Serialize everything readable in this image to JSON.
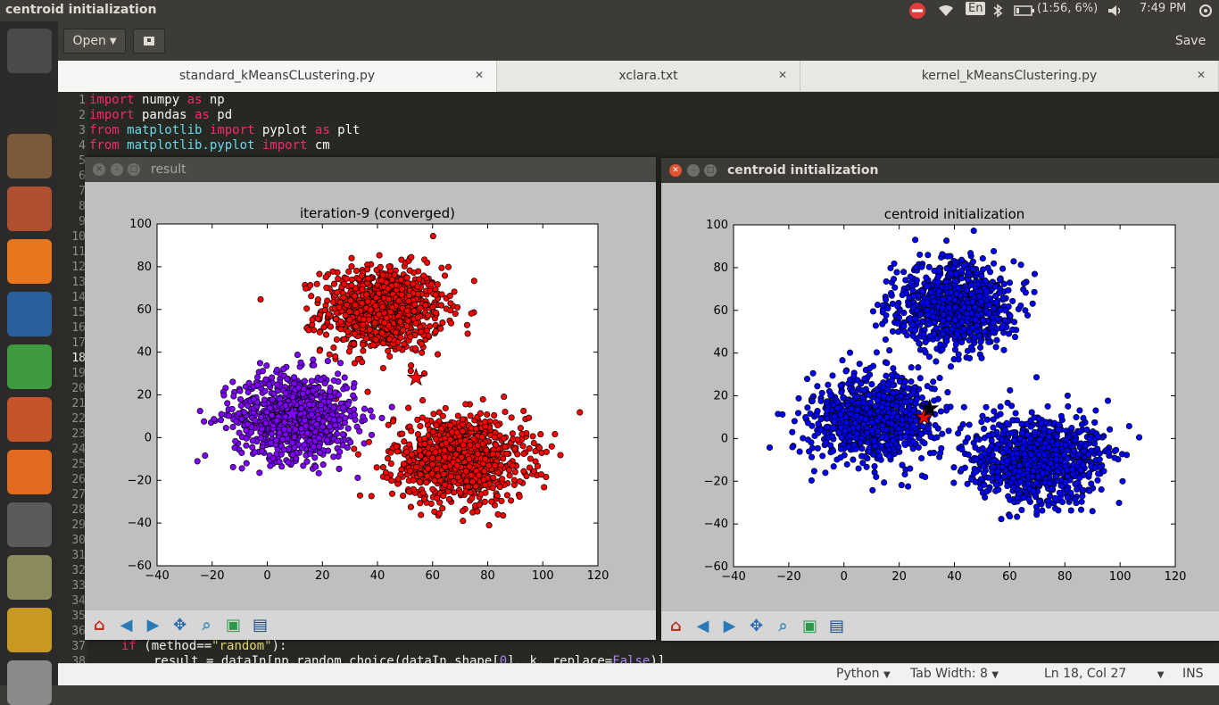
{
  "top_panel": {
    "window_title": "centroid initialization",
    "keyboard_layout": "En",
    "battery": "(1:56, 6%)",
    "clock": "7:49 PM",
    "icons": [
      "do-not-disturb-icon",
      "wifi-icon",
      "keyboard-icon",
      "bluetooth-icon",
      "battery-icon",
      "volume-icon",
      "power-gear-icon"
    ]
  },
  "launcher": {
    "items": [
      {
        "name": "ubuntu-dash-icon",
        "color": "#4a4a4a"
      },
      {
        "name": "terminal-icon",
        "color": "#2b2b2b"
      },
      {
        "name": "gedit-icon",
        "color": "#7a5a3a"
      },
      {
        "name": "files-icon",
        "color": "#b05030"
      },
      {
        "name": "firefox-icon",
        "color": "#e8761e"
      },
      {
        "name": "writer-icon",
        "color": "#2a5f9e"
      },
      {
        "name": "calc-icon",
        "color": "#3e9a3e"
      },
      {
        "name": "impress-icon",
        "color": "#c6542a"
      },
      {
        "name": "software-center-icon",
        "color": "#e26a1f"
      },
      {
        "name": "system-settings-icon",
        "color": "#5b5b5b"
      },
      {
        "name": "software-updater-icon",
        "color": "#8a8a5a"
      },
      {
        "name": "system-monitor-icon",
        "color": "#c89a22"
      },
      {
        "name": "help-icon",
        "color": "#8a8a8a"
      }
    ]
  },
  "gedit": {
    "open_label": "Open",
    "save_label": "Save",
    "tabs": [
      {
        "label": "standard_kMeansCLustering.py"
      },
      {
        "label": "xclara.txt"
      },
      {
        "label": "kernel_kMeansClustering.py"
      }
    ],
    "line_numbers": [
      "1",
      "2",
      "3",
      "4",
      "5",
      "6",
      "7",
      "8",
      "9",
      "10",
      "11",
      "12",
      "13",
      "14",
      "15",
      "16",
      "17",
      "18",
      "19",
      "20",
      "21",
      "22",
      "23",
      "24",
      "25",
      "26",
      "27",
      "28",
      "29",
      "30",
      "31",
      "32",
      "33",
      "34",
      "35",
      "36",
      "37",
      "38"
    ],
    "code_lines": [
      {
        "kw1": "import",
        "rest": " numpy ",
        "kw2": "as",
        "rest2": " np"
      },
      {
        "kw1": "import",
        "rest": " pandas ",
        "kw2": "as",
        "rest2": " pd"
      },
      {
        "kw1": "from",
        "mod": " matplotlib ",
        "kw2": "import",
        "rest2": " pyplot ",
        "kw3": "as",
        "rest3": " plt"
      },
      {
        "kw1": "from",
        "mod": " matplotlib.pyplot ",
        "kw2": "import",
        "rest2": " cm"
      }
    ],
    "line37": {
      "kw": "if",
      "a": " (method==",
      "s": "\"random\"",
      "b": "):"
    },
    "line38": {
      "a": "result = dataIn[np.random.choice(dataIn.shape[",
      "n": "0",
      "b": "], k, replace=",
      "f": "False",
      "c": ")]"
    },
    "status": {
      "language": "Python",
      "tab_width": "Tab Width: 8",
      "position": "Ln 18, Col 27",
      "mode": "INS"
    }
  },
  "windows": {
    "result": {
      "title": "result"
    },
    "centroid": {
      "title": "centroid initialization"
    },
    "toolbar_icons": [
      "home-icon",
      "back-icon",
      "forward-icon",
      "pan-icon",
      "zoom-icon",
      "subplots-icon",
      "save-icon"
    ]
  },
  "chart_data": [
    {
      "type": "scatter",
      "title": "iteration-9 (converged)",
      "xlim": [
        -40,
        120
      ],
      "ylim": [
        -60,
        100
      ],
      "xticks": [
        -40,
        -20,
        0,
        20,
        40,
        60,
        80,
        100,
        120
      ],
      "yticks": [
        -60,
        -40,
        -20,
        0,
        20,
        40,
        60,
        80,
        100
      ],
      "grid": false,
      "clusters": [
        {
          "color": "#ff0000",
          "center": [
            42,
            60
          ],
          "spread": [
            11,
            10
          ],
          "count": 900
        },
        {
          "color": "#8000ff",
          "center": [
            10,
            10
          ],
          "spread": [
            11,
            10
          ],
          "count": 900
        },
        {
          "color": "#ff0000",
          "center": [
            70,
            -10
          ],
          "spread": [
            12,
            10
          ],
          "count": 1000
        }
      ],
      "centroids": [
        {
          "x": 54,
          "y": 28,
          "color": "#ff0000"
        },
        {
          "x": 9,
          "y": 11,
          "color": "#8000ff"
        }
      ]
    },
    {
      "type": "scatter",
      "title": "centroid initialization",
      "xlim": [
        -40,
        120
      ],
      "ylim": [
        -60,
        100
      ],
      "xticks": [
        -40,
        -20,
        0,
        20,
        40,
        60,
        80,
        100,
        120
      ],
      "yticks": [
        -60,
        -40,
        -20,
        0,
        20,
        40,
        60,
        80,
        100
      ],
      "grid": false,
      "clusters": [
        {
          "color": "#0000ff",
          "center": [
            40,
            62
          ],
          "spread": [
            11,
            10
          ],
          "count": 900
        },
        {
          "color": "#0000ff",
          "center": [
            10,
            10
          ],
          "spread": [
            11,
            10
          ],
          "count": 900
        },
        {
          "color": "#0000ff",
          "center": [
            70,
            -10
          ],
          "spread": [
            12,
            10
          ],
          "count": 1000
        }
      ],
      "centroids": [
        {
          "x": 29,
          "y": 10,
          "color": "#ff0000"
        },
        {
          "x": 31,
          "y": 14,
          "color": "#000000"
        }
      ]
    }
  ]
}
